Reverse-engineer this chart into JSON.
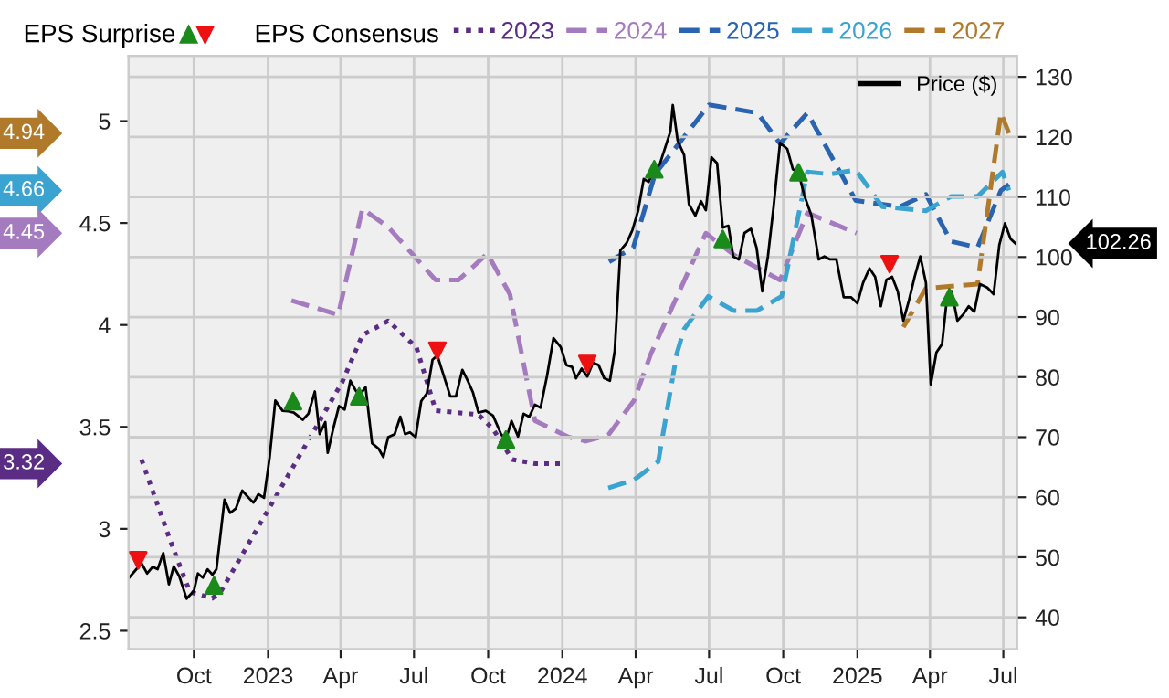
{
  "chart_data": {
    "type": "line",
    "legend_title": "EPS Consensus",
    "legend": "top",
    "grid": true,
    "xlim": [
      "2022-07-12",
      "2025-07-18"
    ],
    "xticks": [
      {
        "value": "2022-10-01",
        "label": "Oct"
      },
      {
        "value": "2023-01-01",
        "label": "2023"
      },
      {
        "value": "2023-04-01",
        "label": "Apr"
      },
      {
        "value": "2023-07-01",
        "label": "Jul"
      },
      {
        "value": "2023-10-01",
        "label": "Oct"
      },
      {
        "value": "2024-01-01",
        "label": "2024"
      },
      {
        "value": "2024-04-01",
        "label": "Apr"
      },
      {
        "value": "2024-07-01",
        "label": "Jul"
      },
      {
        "value": "2024-10-01",
        "label": "Oct"
      },
      {
        "value": "2025-01-01",
        "label": "2025"
      },
      {
        "value": "2025-04-01",
        "label": "Apr"
      },
      {
        "value": "2025-07-01",
        "label": "Jul"
      }
    ],
    "ylim": [
      2.41,
      5.32
    ],
    "yticks": [
      2.5,
      3,
      3.5,
      4,
      4.5,
      5
    ],
    "y2lim": [
      34.7,
      133.5
    ],
    "y2ticks": [
      40,
      50,
      60,
      70,
      80,
      90,
      100,
      110,
      120,
      130
    ],
    "annotations": [
      "EPS Surprise",
      "4.94",
      "4.66",
      "4.45",
      "3.32",
      "102.26"
    ],
    "series": [
      {
        "name": "2023",
        "color": "#5b2c83",
        "line_style": "dotted",
        "x": [
          "2022-07-28",
          "2022-09-01",
          "2022-09-26",
          "2022-10-24",
          "2022-11-03",
          "2023-04-03",
          "2023-04-28",
          "2023-05-30",
          "2023-07-04",
          "2023-07-28",
          "2023-09-19",
          "2023-10-07",
          "2023-10-31",
          "2023-11-28",
          "2023-12-30"
        ],
        "values": [
          3.34,
          2.95,
          2.69,
          2.66,
          2.69,
          3.72,
          3.95,
          4.02,
          3.89,
          3.58,
          3.56,
          3.49,
          3.34,
          3.32,
          3.32
        ]
      },
      {
        "name": "2024",
        "color": "#a57bbf",
        "line_style": "dashed",
        "x": [
          "2023-01-30",
          "2023-03-29",
          "2023-04-28",
          "2023-05-30",
          "2023-07-28",
          "2023-08-25",
          "2023-09-30",
          "2023-10-28",
          "2023-11-28",
          "2024-01-09",
          "2024-01-30",
          "2024-02-27",
          "2024-03-30",
          "2024-04-20",
          "2024-06-27",
          "2024-08-02",
          "2024-09-27",
          "2024-10-31",
          "2024-12-31"
        ],
        "values": [
          4.12,
          4.05,
          4.57,
          4.48,
          4.22,
          4.22,
          4.35,
          4.15,
          3.53,
          3.45,
          3.43,
          3.46,
          3.63,
          3.86,
          4.45,
          4.34,
          4.22,
          4.55,
          4.45
        ]
      },
      {
        "name": "2025",
        "color": "#2a64b0",
        "line_style": "dashed",
        "x": [
          "2024-02-28",
          "2024-03-29",
          "2024-04-25",
          "2024-07-01",
          "2024-08-30",
          "2024-09-27",
          "2024-10-31",
          "2024-12-30",
          "2025-02-23",
          "2025-03-27",
          "2025-04-27",
          "2025-05-30",
          "2025-06-28",
          "2025-07-08"
        ],
        "values": [
          4.31,
          4.38,
          4.74,
          5.08,
          5.04,
          4.89,
          5.04,
          4.61,
          4.58,
          4.64,
          4.41,
          4.38,
          4.66,
          4.69
        ]
      },
      {
        "name": "2026",
        "color": "#3ba3d0",
        "line_style": "dashed",
        "x": [
          "2024-02-27",
          "2024-03-30",
          "2024-04-29",
          "2024-05-22",
          "2024-05-31",
          "2024-06-30",
          "2024-08-01",
          "2024-08-29",
          "2024-09-29",
          "2024-10-31",
          "2024-11-28",
          "2024-12-30",
          "2025-02-01",
          "2025-03-27",
          "2025-04-27",
          "2025-05-30",
          "2025-06-30",
          "2025-07-08"
        ],
        "values": [
          3.2,
          3.24,
          3.33,
          3.86,
          3.98,
          4.14,
          4.07,
          4.07,
          4.14,
          4.75,
          4.74,
          4.76,
          4.58,
          4.56,
          4.63,
          4.63,
          4.75,
          4.66
        ]
      },
      {
        "name": "2027",
        "color": "#b07a2a",
        "line_style": "dashed",
        "x": [
          "2025-02-27",
          "2025-03-27",
          "2025-05-30",
          "2025-06-28",
          "2025-07-08"
        ],
        "values": [
          3.99,
          4.18,
          4.2,
          5.04,
          4.94
        ]
      },
      {
        "name": "Price ($)",
        "color": "#000000",
        "line_style": "solid",
        "axis": "y2",
        "x": [
          "2022-07-12",
          "2022-07-28",
          "2022-08-04",
          "2022-08-11",
          "2022-08-17",
          "2022-08-24",
          "2022-08-31",
          "2022-09-06",
          "2022-09-13",
          "2022-09-22",
          "2022-10-01",
          "2022-10-06",
          "2022-10-12",
          "2022-10-18",
          "2022-10-24",
          "2022-10-29",
          "2022-11-08",
          "2022-11-15",
          "2022-11-22",
          "2022-11-30",
          "2022-12-08",
          "2022-12-14",
          "2022-12-20",
          "2022-12-27",
          "2023-01-03",
          "2023-01-10",
          "2023-01-19",
          "2023-01-26",
          "2023-02-02",
          "2023-02-13",
          "2023-02-20",
          "2023-02-28",
          "2023-03-06",
          "2023-03-13",
          "2023-03-16",
          "2023-03-23",
          "2023-03-30",
          "2023-04-06",
          "2023-04-13",
          "2023-04-20",
          "2023-04-25",
          "2023-05-02",
          "2023-05-10",
          "2023-05-18",
          "2023-05-24",
          "2023-05-30",
          "2023-06-07",
          "2023-06-14",
          "2023-06-20",
          "2023-06-26",
          "2023-07-03",
          "2023-07-10",
          "2023-07-17",
          "2023-07-24",
          "2023-07-30",
          "2023-08-15",
          "2023-08-22",
          "2023-08-30",
          "2023-09-06",
          "2023-09-12",
          "2023-09-19",
          "2023-09-28",
          "2023-10-07",
          "2023-10-17",
          "2023-10-23",
          "2023-10-30",
          "2023-11-07",
          "2023-11-14",
          "2023-11-21",
          "2023-11-28",
          "2023-12-05",
          "2023-12-13",
          "2023-12-21",
          "2023-12-30",
          "2024-01-06",
          "2024-01-13",
          "2024-01-18",
          "2024-01-25",
          "2024-02-01",
          "2024-02-08",
          "2024-02-15",
          "2024-02-22",
          "2024-02-29",
          "2024-03-06",
          "2024-03-13",
          "2024-03-21",
          "2024-03-28",
          "2024-04-04",
          "2024-04-11",
          "2024-04-17",
          "2024-04-24",
          "2024-05-01",
          "2024-05-08",
          "2024-05-14",
          "2024-05-17",
          "2024-05-23",
          "2024-05-31",
          "2024-06-06",
          "2024-06-14",
          "2024-06-21",
          "2024-06-27",
          "2024-07-04",
          "2024-07-11",
          "2024-07-18",
          "2024-07-25",
          "2024-07-31",
          "2024-08-07",
          "2024-08-14",
          "2024-08-22",
          "2024-08-29",
          "2024-09-05",
          "2024-09-12",
          "2024-09-19",
          "2024-09-27",
          "2024-10-06",
          "2024-10-13",
          "2024-10-20",
          "2024-10-27",
          "2024-11-05",
          "2024-11-14",
          "2024-11-21",
          "2024-11-28",
          "2024-12-06",
          "2024-12-15",
          "2024-12-24",
          "2025-01-01",
          "2025-01-08",
          "2025-01-16",
          "2025-01-23",
          "2025-01-30",
          "2025-02-06",
          "2025-02-13",
          "2025-02-20",
          "2025-02-27",
          "2025-03-06",
          "2025-03-13",
          "2025-03-20",
          "2025-03-27",
          "2025-04-02",
          "2025-04-09",
          "2025-04-16",
          "2025-04-21",
          "2025-04-28",
          "2025-05-05",
          "2025-05-12",
          "2025-05-19",
          "2025-05-26",
          "2025-06-02",
          "2025-06-11",
          "2025-06-19",
          "2025-06-26",
          "2025-07-03",
          "2025-07-10",
          "2025-07-16"
        ],
        "values": [
          46.5,
          49.0,
          47.3,
          48.4,
          48.0,
          50.7,
          45.5,
          48.5,
          46.8,
          43.1,
          44.4,
          47.3,
          46.6,
          48.0,
          47.1,
          48.0,
          59.6,
          57.4,
          58.1,
          61.1,
          59.9,
          59.1,
          60.5,
          59.9,
          66.7,
          76.1,
          74.4,
          74.3,
          74.1,
          72.9,
          73.9,
          77.6,
          70.5,
          72.5,
          67.4,
          71.5,
          75.2,
          74.6,
          79.4,
          77.7,
          77.1,
          78.3,
          69.0,
          68.1,
          66.7,
          70.0,
          70.5,
          73.4,
          70.5,
          70.8,
          70.0,
          76.0,
          77.3,
          82.9,
          83.6,
          76.8,
          76.8,
          81.2,
          79.3,
          77.5,
          74.1,
          74.4,
          73.6,
          70.5,
          69.6,
          72.7,
          70.1,
          73.9,
          73.4,
          75.4,
          74.9,
          80.2,
          86.5,
          85.0,
          82.0,
          81.7,
          79.8,
          81.4,
          80.1,
          82.4,
          82.0,
          79.8,
          79.4,
          84.4,
          101.1,
          102.4,
          104.5,
          107.7,
          113.0,
          112.5,
          114.5,
          115.5,
          118.4,
          120.9,
          125.3,
          119.4,
          117.0,
          108.8,
          106.9,
          109.3,
          107.8,
          116.6,
          115.6,
          104.9,
          105.2,
          100.1,
          99.6,
          104.0,
          104.7,
          101.5,
          94.3,
          100.1,
          108.3,
          119.0,
          118.0,
          114.6,
          114.1,
          110.3,
          106.9,
          99.6,
          100.1,
          99.6,
          99.6,
          93.3,
          93.3,
          92.3,
          95.7,
          98.1,
          96.7,
          91.8,
          96.2,
          96.7,
          94.3,
          89.4,
          92.8,
          96.7,
          100.1,
          95.7,
          78.8,
          84.1,
          85.5,
          91.8,
          94.3,
          89.4,
          90.4,
          91.8,
          90.9,
          95.5,
          94.9,
          93.8,
          102.0,
          105.6,
          103.0,
          102.26
        ]
      },
      {
        "type": "scatter",
        "color": "#1a8a1a",
        "marker": "triangle",
        "axis": "y2",
        "x": [
          "2022-10-26",
          "2023-02-01",
          "2023-04-24",
          "2023-10-23",
          "2024-04-24",
          "2024-07-18",
          "2024-10-20",
          "2025-04-25"
        ],
        "values": [
          45.3,
          76.0,
          76.8,
          69.6,
          114.6,
          103.0,
          114.1,
          93.3
        ]
      },
      {
        "type": "scatter",
        "color": "#ee1111",
        "marker": "triangle-down",
        "axis": "y2",
        "x": [
          "2022-07-24",
          "2023-07-30",
          "2024-02-01",
          "2025-02-10"
        ],
        "values": [
          49.5,
          84.4,
          82.2,
          98.8
        ]
      }
    ]
  }
}
